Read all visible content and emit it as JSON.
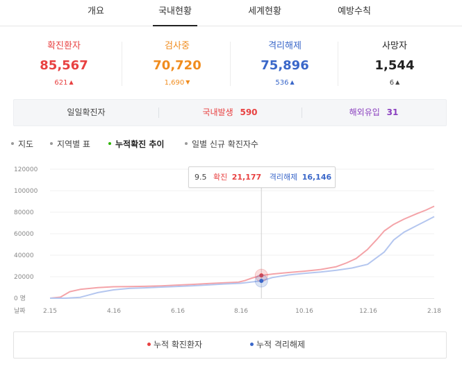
{
  "tabs": [
    {
      "label": "개요",
      "active": false
    },
    {
      "label": "국내현황",
      "active": true
    },
    {
      "label": "세계현황",
      "active": false
    },
    {
      "label": "예방수칙",
      "active": false
    }
  ],
  "stats": [
    {
      "label": "확진환자",
      "value": "85,567",
      "change": "621",
      "direction": "up",
      "color": "#e84141",
      "arrow_color": "#e84141"
    },
    {
      "label": "검사중",
      "value": "70,720",
      "change": "1,690",
      "direction": "down",
      "color": "#f08c1e",
      "arrow_color": "#f08c1e"
    },
    {
      "label": "격리해제",
      "value": "75,896",
      "change": "536",
      "direction": "up",
      "color": "#3a67c9",
      "arrow_color": "#3a67c9"
    },
    {
      "label": "사망자",
      "value": "1,544",
      "change": "6",
      "direction": "up",
      "color": "#222222",
      "arrow_color": "#444444"
    }
  ],
  "daily": {
    "label": "일일확진자",
    "domestic_label": "국내발생",
    "domestic_value": "590",
    "overseas_label": "해외유입",
    "overseas_value": "31",
    "domestic_color": "#e84141",
    "overseas_color": "#8a3fbf"
  },
  "subtabs": [
    {
      "label": "지도",
      "active": false
    },
    {
      "label": "지역별 표",
      "active": false
    },
    {
      "label": "누적확진 추이",
      "active": true
    },
    {
      "label": "일별 신규 확진자수",
      "active": false
    }
  ],
  "tooltip": {
    "date": "9.5",
    "confirmed_label": "확진",
    "confirmed_value": "21,177",
    "released_label": "격리해제",
    "released_value": "16,146"
  },
  "chart_data": {
    "type": "line",
    "ylim": [
      0,
      120000
    ],
    "yticks": [
      0,
      20000,
      40000,
      60000,
      80000,
      100000,
      120000
    ],
    "ytick_labels": [
      "0 명",
      "20000",
      "40000",
      "60000",
      "80000",
      "100000",
      "120000"
    ],
    "xlabel": "날짜",
    "xtick_labels": [
      "2.15",
      "4.16",
      "6.16",
      "8.16",
      "10.16",
      "12.16",
      "2.18"
    ],
    "x_start": "2020-02-15",
    "x_end": "2021-02-18",
    "highlight_date": "2020-09-05",
    "series": [
      {
        "name": "누적 확진환자",
        "color": "#f4a3a8",
        "dot_color": "#e84141",
        "points": [
          [
            "2020-02-15",
            28
          ],
          [
            "2020-02-25",
            977
          ],
          [
            "2020-03-05",
            6088
          ],
          [
            "2020-03-15",
            8162
          ],
          [
            "2020-04-01",
            9887
          ],
          [
            "2020-04-16",
            10613
          ],
          [
            "2020-05-01",
            10774
          ],
          [
            "2020-05-16",
            11037
          ],
          [
            "2020-06-01",
            11503
          ],
          [
            "2020-06-16",
            12198
          ],
          [
            "2020-07-01",
            12850
          ],
          [
            "2020-07-16",
            13612
          ],
          [
            "2020-08-01",
            14336
          ],
          [
            "2020-08-14",
            14873
          ],
          [
            "2020-08-20",
            16346
          ],
          [
            "2020-08-27",
            18706
          ],
          [
            "2020-09-05",
            21177
          ],
          [
            "2020-09-16",
            22504
          ],
          [
            "2020-10-01",
            23889
          ],
          [
            "2020-10-16",
            25108
          ],
          [
            "2020-11-01",
            26732
          ],
          [
            "2020-11-16",
            29311
          ],
          [
            "2020-11-26",
            32887
          ],
          [
            "2020-12-05",
            36915
          ],
          [
            "2020-12-16",
            45442
          ],
          [
            "2020-12-25",
            54770
          ],
          [
            "2021-01-01",
            62593
          ],
          [
            "2021-01-10",
            68664
          ],
          [
            "2021-01-20",
            73518
          ],
          [
            "2021-02-01",
            78508
          ],
          [
            "2021-02-10",
            81930
          ],
          [
            "2021-02-18",
            85567
          ]
        ]
      },
      {
        "name": "누적 격리해제",
        "color": "#b4c6ef",
        "dot_color": "#3a67c9",
        "points": [
          [
            "2020-02-15",
            9
          ],
          [
            "2020-03-01",
            30
          ],
          [
            "2020-03-15",
            834
          ],
          [
            "2020-04-01",
            5228
          ],
          [
            "2020-04-16",
            7757
          ],
          [
            "2020-05-01",
            9072
          ],
          [
            "2020-05-16",
            9632
          ],
          [
            "2020-06-01",
            10340
          ],
          [
            "2020-06-16",
            10930
          ],
          [
            "2020-07-01",
            11537
          ],
          [
            "2020-07-16",
            12348
          ],
          [
            "2020-08-01",
            13233
          ],
          [
            "2020-08-16",
            13901
          ],
          [
            "2020-09-05",
            16146
          ],
          [
            "2020-09-16",
            19310
          ],
          [
            "2020-10-01",
            21590
          ],
          [
            "2020-10-16",
            23082
          ],
          [
            "2020-11-01",
            24395
          ],
          [
            "2020-11-16",
            26017
          ],
          [
            "2020-12-01",
            28065
          ],
          [
            "2020-12-16",
            31493
          ],
          [
            "2021-01-01",
            42953
          ],
          [
            "2021-01-10",
            54123
          ],
          [
            "2021-01-20",
            61415
          ],
          [
            "2021-02-01",
            67417
          ],
          [
            "2021-02-10",
            71856
          ],
          [
            "2021-02-18",
            75896
          ]
        ]
      }
    ]
  },
  "legend": [
    {
      "label": "누적 확진환자",
      "color": "#e84141"
    },
    {
      "label": "누적 격리해제",
      "color": "#3a67c9"
    }
  ]
}
